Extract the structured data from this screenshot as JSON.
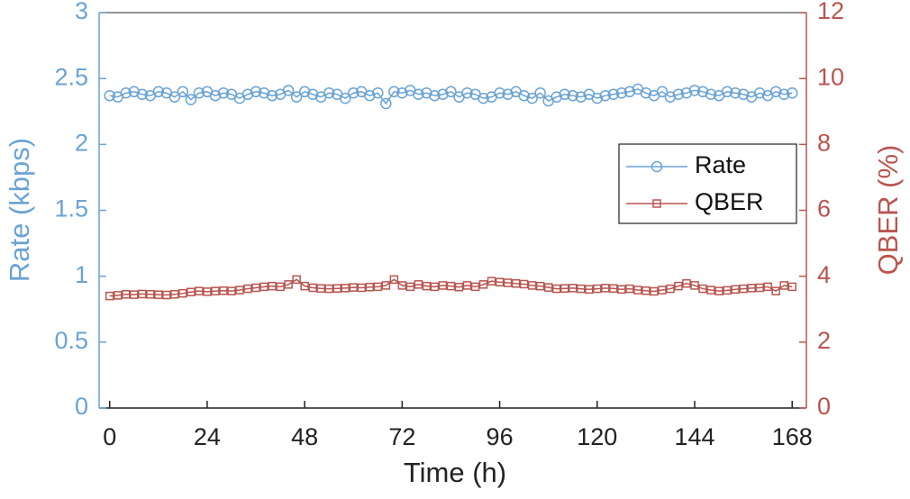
{
  "chart_data": {
    "type": "line",
    "xlabel": "Time (h)",
    "ylabel": "Rate (kbps)",
    "y2label": "QBER (%)",
    "x": [
      0,
      2,
      4,
      6,
      8,
      10,
      12,
      14,
      16,
      18,
      20,
      22,
      24,
      26,
      28,
      30,
      32,
      34,
      36,
      38,
      40,
      42,
      44,
      46,
      48,
      50,
      52,
      54,
      56,
      58,
      60,
      62,
      64,
      66,
      68,
      70,
      72,
      74,
      76,
      78,
      80,
      82,
      84,
      86,
      88,
      90,
      92,
      94,
      96,
      98,
      100,
      102,
      104,
      106,
      108,
      110,
      112,
      114,
      116,
      118,
      120,
      122,
      124,
      126,
      128,
      130,
      132,
      134,
      136,
      138,
      140,
      142,
      144,
      146,
      148,
      150,
      152,
      154,
      156,
      158,
      160,
      162,
      164,
      166,
      168
    ],
    "series": [
      {
        "name": "Rate",
        "color": "#6aa3d5",
        "marker": "circle",
        "values": [
          2.37,
          2.36,
          2.39,
          2.4,
          2.38,
          2.37,
          2.4,
          2.39,
          2.36,
          2.4,
          2.34,
          2.39,
          2.4,
          2.37,
          2.39,
          2.38,
          2.35,
          2.38,
          2.4,
          2.39,
          2.37,
          2.38,
          2.41,
          2.36,
          2.4,
          2.38,
          2.36,
          2.39,
          2.38,
          2.35,
          2.39,
          2.4,
          2.37,
          2.39,
          2.31,
          2.4,
          2.39,
          2.41,
          2.38,
          2.39,
          2.37,
          2.38,
          2.4,
          2.36,
          2.39,
          2.38,
          2.35,
          2.36,
          2.39,
          2.38,
          2.4,
          2.37,
          2.35,
          2.39,
          2.33,
          2.36,
          2.38,
          2.37,
          2.36,
          2.38,
          2.35,
          2.37,
          2.38,
          2.39,
          2.4,
          2.42,
          2.39,
          2.37,
          2.4,
          2.36,
          2.38,
          2.39,
          2.41,
          2.4,
          2.38,
          2.37,
          2.4,
          2.39,
          2.38,
          2.36,
          2.39,
          2.37,
          2.4,
          2.38,
          2.39
        ]
      },
      {
        "name": "QBER",
        "color": "#b9554f",
        "marker": "square",
        "axis": "y2",
        "values": [
          3.4,
          3.42,
          3.45,
          3.44,
          3.46,
          3.45,
          3.44,
          3.43,
          3.45,
          3.48,
          3.52,
          3.55,
          3.53,
          3.55,
          3.56,
          3.55,
          3.58,
          3.62,
          3.65,
          3.68,
          3.7,
          3.68,
          3.75,
          3.9,
          3.7,
          3.65,
          3.63,
          3.62,
          3.63,
          3.64,
          3.66,
          3.65,
          3.67,
          3.68,
          3.72,
          3.9,
          3.72,
          3.68,
          3.75,
          3.7,
          3.68,
          3.72,
          3.7,
          3.67,
          3.72,
          3.68,
          3.75,
          3.85,
          3.82,
          3.8,
          3.78,
          3.76,
          3.72,
          3.7,
          3.66,
          3.62,
          3.63,
          3.64,
          3.62,
          3.6,
          3.62,
          3.64,
          3.63,
          3.6,
          3.62,
          3.58,
          3.56,
          3.54,
          3.58,
          3.62,
          3.7,
          3.78,
          3.72,
          3.62,
          3.58,
          3.55,
          3.57,
          3.6,
          3.62,
          3.64,
          3.65,
          3.68,
          3.55,
          3.72,
          3.68
        ]
      }
    ],
    "xlim": [
      -2.6,
      171.5
    ],
    "xticks": [
      0,
      24,
      48,
      72,
      96,
      120,
      144,
      168
    ],
    "ylim": [
      0,
      3
    ],
    "yticks": [
      0,
      0.5,
      1,
      1.5,
      2,
      2.5,
      3
    ],
    "y2lim": [
      0,
      12
    ],
    "y2ticks": [
      0,
      2,
      4,
      6,
      8,
      10,
      12
    ],
    "legend": "right"
  }
}
